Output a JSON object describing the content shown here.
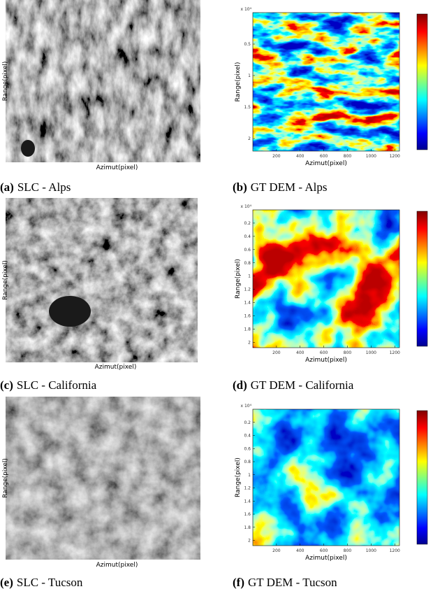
{
  "panels": [
    {
      "kind": "slc",
      "letter": "(a)",
      "caption": "SLC - Alps",
      "ylabel": "Range(pixel)",
      "xlabel": "Azimut(pixel)"
    },
    {
      "kind": "dem",
      "letter": "(b)",
      "caption": "GT DEM - Alps",
      "ylabel": "Range(pixel)",
      "xlabel": "Azimut(pixel)",
      "exponent": "x 10⁴",
      "yticks": [
        "0.5",
        "1",
        "1.5",
        "2"
      ],
      "xticks": [
        "200",
        "400",
        "600",
        "800",
        "1000",
        "1200"
      ]
    },
    {
      "kind": "slc",
      "letter": "(c)",
      "caption": "SLC - California",
      "ylabel": "Range(pixel)",
      "xlabel": "Azimut(pixel)"
    },
    {
      "kind": "dem",
      "letter": "(d)",
      "caption": "GT DEM - California",
      "ylabel": "Range(pixel)",
      "xlabel": "Azimut(pixel)",
      "exponent": "x 10⁴",
      "yticks": [
        "0.2",
        "0.4",
        "0.6",
        "0.8",
        "1",
        "1.2",
        "1.4",
        "1.6",
        "1.8",
        "2"
      ],
      "xticks": [
        "200",
        "400",
        "600",
        "800",
        "1000",
        "1200"
      ]
    },
    {
      "kind": "slc",
      "letter": "(e)",
      "caption": "SLC - Tucson",
      "ylabel": "Range(pixel)",
      "xlabel": "Azimut(pixel)"
    },
    {
      "kind": "dem",
      "letter": "(f)",
      "caption": "GT DEM - Tucson",
      "ylabel": "Range(pixel)",
      "xlabel": "Azimut(pixel)",
      "exponent": "x 10⁴",
      "yticks": [
        "0.2",
        "0.4",
        "0.6",
        "0.8",
        "1",
        "1.2",
        "1.4",
        "1.6",
        "1.8",
        "2"
      ],
      "xticks": [
        "200",
        "400",
        "600",
        "800",
        "1000",
        "1200"
      ]
    }
  ]
}
